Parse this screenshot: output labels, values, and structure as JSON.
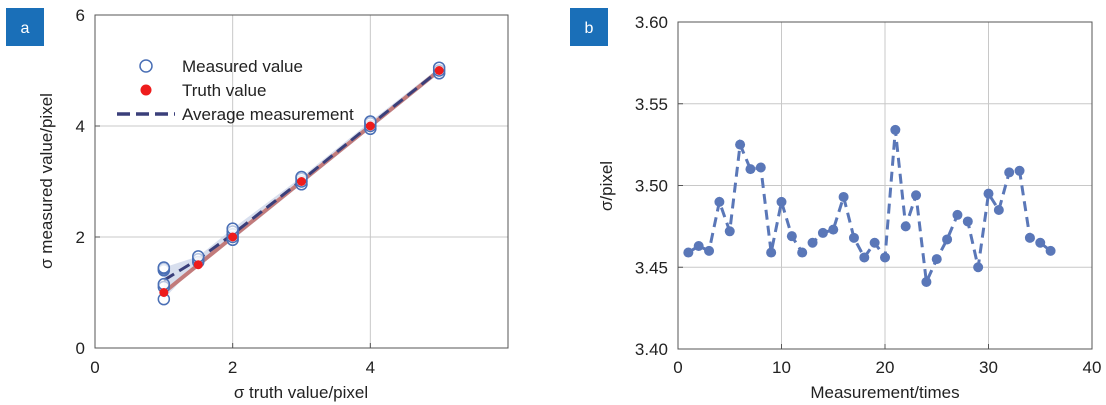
{
  "chart_data": [
    {
      "panel_label": "a",
      "type": "scatter",
      "xlabel": "σ truth value/pixel",
      "ylabel": "σ measured value/pixel",
      "xlim": [
        0,
        6
      ],
      "ylim": [
        0,
        6
      ],
      "xticks": [
        "0",
        "2",
        "4"
      ],
      "yticks": [
        "0",
        "2",
        "4",
        "6"
      ],
      "grid": true,
      "legend_position": "top-left",
      "colors": {
        "measured": "#4a6fb5",
        "truth": "#ee1c1c",
        "average": "#3a3f7a",
        "truth_line": "#c27b7b",
        "band": "#b8c4e0"
      },
      "legend": [
        "Measured value",
        "Truth value",
        "Average measurement"
      ],
      "series": [
        {
          "name": "Measured value",
          "points": [
            [
              1,
              0.88
            ],
            [
              1,
              1.1
            ],
            [
              1,
              1.15
            ],
            [
              1,
              1.4
            ],
            [
              1,
              1.43
            ],
            [
              1,
              1.45
            ],
            [
              1.5,
              1.55
            ],
            [
              1.5,
              1.6
            ],
            [
              1.5,
              1.65
            ],
            [
              2,
              1.95
            ],
            [
              2,
              2.0
            ],
            [
              2,
              2.05
            ],
            [
              2,
              2.1
            ],
            [
              2,
              2.15
            ],
            [
              3,
              2.95
            ],
            [
              3,
              3.0
            ],
            [
              3,
              3.05
            ],
            [
              3,
              3.08
            ],
            [
              4,
              3.95
            ],
            [
              4,
              4.0
            ],
            [
              4,
              4.05
            ],
            [
              4,
              4.08
            ],
            [
              5,
              4.95
            ],
            [
              5,
              5.0
            ],
            [
              5,
              5.05
            ]
          ]
        },
        {
          "name": "Truth value",
          "points": [
            [
              1,
              1
            ],
            [
              1.5,
              1.5
            ],
            [
              2,
              2
            ],
            [
              3,
              3
            ],
            [
              4,
              4
            ],
            [
              5,
              5
            ]
          ]
        },
        {
          "name": "Average measurement",
          "points": [
            [
              1,
              1.22
            ],
            [
              1.5,
              1.6
            ],
            [
              2,
              2.05
            ],
            [
              3,
              3.02
            ],
            [
              4,
              4.02
            ],
            [
              5,
              5.0
            ]
          ]
        }
      ]
    },
    {
      "panel_label": "b",
      "type": "line",
      "xlabel": "Measurement/times",
      "ylabel": "σ/pixel",
      "xlim": [
        0,
        40
      ],
      "ylim": [
        3.4,
        3.6
      ],
      "xticks": [
        "0",
        "10",
        "20",
        "30",
        "40"
      ],
      "yticks": [
        "3.40",
        "3.45",
        "3.50",
        "3.55",
        "3.60"
      ],
      "grid": true,
      "colors": {
        "line": "#5a77b8"
      },
      "x": [
        1,
        2,
        3,
        4,
        5,
        6,
        7,
        8,
        9,
        10,
        11,
        12,
        13,
        14,
        15,
        16,
        17,
        18,
        19,
        20,
        21,
        22,
        23,
        24,
        25,
        26,
        27,
        28,
        29,
        30,
        31,
        32,
        33,
        34,
        35,
        36
      ],
      "y": [
        3.459,
        3.463,
        3.46,
        3.49,
        3.472,
        3.525,
        3.51,
        3.511,
        3.459,
        3.49,
        3.469,
        3.459,
        3.465,
        3.471,
        3.473,
        3.493,
        3.468,
        3.456,
        3.465,
        3.456,
        3.534,
        3.475,
        3.494,
        3.441,
        3.455,
        3.467,
        3.482,
        3.478,
        3.45,
        3.495,
        3.485,
        3.508,
        3.509,
        3.468,
        3.465,
        3.46
      ]
    }
  ]
}
